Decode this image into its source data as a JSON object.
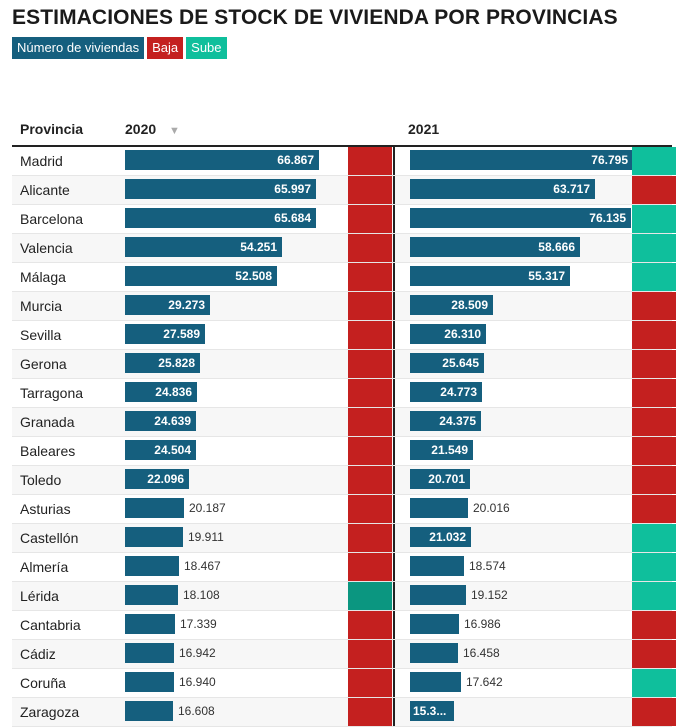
{
  "title": "ESTIMACIONES DE STOCK DE VIVIENDA POR PROVINCIAS",
  "legend": [
    {
      "label": "Número de viviendas",
      "color": "#155f7e"
    },
    {
      "label": "Baja",
      "color": "#c4201f"
    },
    {
      "label": "Sube",
      "color": "#0fbf9c"
    }
  ],
  "columns": {
    "province": "Provincia",
    "y2020": "2020",
    "y2021": "2021",
    "sort_icon": "▼"
  },
  "colors": {
    "bar": "#155f7e",
    "baja": "#c4201f",
    "sube": "#0fbf9c",
    "sube_dark": "#0b9680"
  },
  "chart_data": {
    "type": "table",
    "title": "ESTIMACIONES DE STOCK DE VIVIENDA POR PROVINCIAS",
    "columns": [
      "Provincia",
      "2020",
      "2021"
    ],
    "xlim": [
      0,
      81000
    ],
    "rows": [
      {
        "province": "Madrid",
        "v2020": 66867,
        "label2020": "66.867",
        "chg2020": "baja",
        "v2021": 76795,
        "label2021": "76.795",
        "chg2021": "sube"
      },
      {
        "province": "Alicante",
        "v2020": 65997,
        "label2020": "65.997",
        "chg2020": "baja",
        "v2021": 63717,
        "label2021": "63.717",
        "chg2021": "baja"
      },
      {
        "province": "Barcelona",
        "v2020": 65684,
        "label2020": "65.684",
        "chg2020": "baja",
        "v2021": 76135,
        "label2021": "76.135",
        "chg2021": "sube"
      },
      {
        "province": "Valencia",
        "v2020": 54251,
        "label2020": "54.251",
        "chg2020": "baja",
        "v2021": 58666,
        "label2021": "58.666",
        "chg2021": "sube"
      },
      {
        "province": "Málaga",
        "v2020": 52508,
        "label2020": "52.508",
        "chg2020": "baja",
        "v2021": 55317,
        "label2021": "55.317",
        "chg2021": "sube"
      },
      {
        "province": "Murcia",
        "v2020": 29273,
        "label2020": "29.273",
        "chg2020": "baja",
        "v2021": 28509,
        "label2021": "28.509",
        "chg2021": "baja"
      },
      {
        "province": "Sevilla",
        "v2020": 27589,
        "label2020": "27.589",
        "chg2020": "baja",
        "v2021": 26310,
        "label2021": "26.310",
        "chg2021": "baja"
      },
      {
        "province": "Gerona",
        "v2020": 25828,
        "label2020": "25.828",
        "chg2020": "baja",
        "v2021": 25645,
        "label2021": "25.645",
        "chg2021": "baja"
      },
      {
        "province": "Tarragona",
        "v2020": 24836,
        "label2020": "24.836",
        "chg2020": "baja",
        "v2021": 24773,
        "label2021": "24.773",
        "chg2021": "baja"
      },
      {
        "province": "Granada",
        "v2020": 24639,
        "label2020": "24.639",
        "chg2020": "baja",
        "v2021": 24375,
        "label2021": "24.375",
        "chg2021": "baja"
      },
      {
        "province": "Baleares",
        "v2020": 24504,
        "label2020": "24.504",
        "chg2020": "baja",
        "v2021": 21549,
        "label2021": "21.549",
        "chg2021": "baja"
      },
      {
        "province": "Toledo",
        "v2020": 22096,
        "label2020": "22.096",
        "chg2020": "baja",
        "v2021": 20701,
        "label2021": "20.701",
        "chg2021": "baja"
      },
      {
        "province": "Asturias",
        "v2020": 20187,
        "label2020": "20.187",
        "chg2020": "baja",
        "v2021": 20016,
        "label2021": "20.016",
        "chg2021": "baja"
      },
      {
        "province": "Castellón",
        "v2020": 19911,
        "label2020": "19.911",
        "chg2020": "baja",
        "v2021": 21032,
        "label2021": "21.032",
        "chg2021": "sube"
      },
      {
        "province": "Almería",
        "v2020": 18467,
        "label2020": "18.467",
        "chg2020": "baja",
        "v2021": 18574,
        "label2021": "18.574",
        "chg2021": "sube"
      },
      {
        "province": "Lérida",
        "v2020": 18108,
        "label2020": "18.108",
        "chg2020": "sube_dark",
        "v2021": 19152,
        "label2021": "19.152",
        "chg2021": "sube"
      },
      {
        "province": "Cantabria",
        "v2020": 17339,
        "label2020": "17.339",
        "chg2020": "baja",
        "v2021": 16986,
        "label2021": "16.986",
        "chg2021": "baja"
      },
      {
        "province": "Cádiz",
        "v2020": 16942,
        "label2020": "16.942",
        "chg2020": "baja",
        "v2021": 16458,
        "label2021": "16.458",
        "chg2021": "baja"
      },
      {
        "province": "Coruña",
        "v2020": 16940,
        "label2020": "16.940",
        "chg2020": "baja",
        "v2021": 17642,
        "label2021": "17.642",
        "chg2021": "sube"
      },
      {
        "province": "Zaragoza",
        "v2020": 16608,
        "label2020": "16.608",
        "chg2020": "baja",
        "v2021": 15300,
        "label2021": "15.3...",
        "chg2021": "baja"
      }
    ]
  }
}
